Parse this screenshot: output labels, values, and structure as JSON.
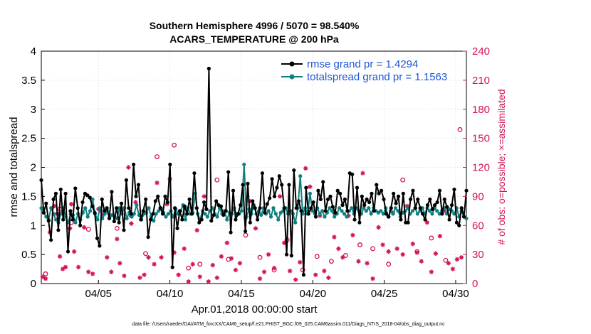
{
  "chart_data": {
    "type": "line",
    "title_line1": "Southern Hemisphere 4996 / 5070 = 98.540%",
    "title_line2": "ACARS_TEMPERATURE @ 200 hPa",
    "xlabel": "Apr.01,2018 00:00:00 start",
    "ylabel": "rmse and totalspread",
    "y2label": "# of obs: o=possible; ×=assimilated",
    "footer": "data file: /Users/raeder/DAI/ATM_forcXX/CAM6_setup/f.e21.FHIST_BGC.f09_025.CAM6assim.011/Diags_NTrS_2018-04/obs_diag_output.nc",
    "xlim": [
      1,
      30.75
    ],
    "ylim": [
      0,
      4
    ],
    "y2lim": [
      0,
      240
    ],
    "x_ticks": [
      5,
      10,
      15,
      20,
      25,
      30
    ],
    "x_tick_labels": [
      "04/05",
      "04/10",
      "04/15",
      "04/20",
      "04/25",
      "04/30"
    ],
    "y_ticks": [
      0,
      0.5,
      1,
      1.5,
      2,
      2.5,
      3,
      3.5,
      4
    ],
    "y_tick_labels": [
      "0",
      "0.5",
      "1",
      "1.5",
      "2",
      "2.5",
      "3",
      "3.5",
      "4"
    ],
    "y2_ticks": [
      0,
      30,
      60,
      90,
      120,
      150,
      180,
      210,
      240
    ],
    "y2_tick_labels": [
      "0",
      "30",
      "60",
      "90",
      "120",
      "150",
      "180",
      "210",
      "240"
    ],
    "legend": [
      {
        "name": "rmse grand pr = 1.4294",
        "color": "#000000"
      },
      {
        "name": "totalspread grand pr = 1.1563",
        "color": "#0f8080"
      }
    ],
    "colors": {
      "rmse": "#000000",
      "spread": "#0f8080",
      "obs": "#d4145a",
      "right_axis": "#d4145a"
    },
    "series": [
      {
        "name": "rmse",
        "values": [
          1.78,
          1.22,
          1.38,
          1.08,
          0.75,
          1.45,
          1.55,
          0.92,
          1.62,
          1.1,
          1.55,
          0.55,
          1.25,
          1.1,
          1.64,
          1.3,
          1.0,
          1.4,
          1.55,
          1.52,
          1.48,
          1.33,
          1.22,
          0.78,
          0.65,
          1.45,
          1.25,
          1.3,
          1.12,
          1.58,
          1.07,
          1.3,
          1.05,
          1.38,
          0.92,
          1.78,
          1.3,
          1.2,
          2.05,
          1.5,
          1.7,
          1.1,
          1.25,
          1.45,
          0.8,
          1.1,
          1.2,
          1.42,
          1.5,
          1.3,
          1.2,
          1.5,
          1.4,
          2.05,
          0.28,
          1.3,
          0.95,
          1.25,
          1.1,
          1.33,
          1.2,
          1.45,
          1.2,
          1.9,
          1.3,
          1.05,
          1.1,
          1.4,
          1.28,
          3.7,
          1.08,
          1.18,
          1.42,
          1.35,
          1.33,
          1.18,
          1.25,
          1.92,
          0.88,
          1.6,
          1.1,
          1.2,
          1.35,
          1.7,
          0.9,
          1.72,
          1.05,
          1.42,
          1.3,
          1.1,
          1.3,
          1.9,
          1.22,
          1.37,
          1.47,
          1.8,
          1.5,
          1.65,
          1.85,
          1.7,
          1.3,
          0.5,
          1.7,
          0.48,
          1.95,
          1.3,
          1.42,
          1.25,
          0.15,
          1.65,
          1.2,
          1.3,
          1.4,
          1.15,
          1.6,
          1.45,
          1.75,
          1.25,
          1.45,
          1.5,
          1.32,
          1.22,
          1.6,
          1.55,
          1.35,
          1.45,
          1.25,
          1.9,
          1.88,
          1.1,
          1.65,
          1.05,
          1.5,
          1.35,
          1.45,
          1.4,
          1.55,
          1.25,
          1.7,
          1.55,
          1.6,
          1.45,
          1.2,
          1.15,
          1.3,
          1.55,
          1.38,
          1.5,
          1.1,
          1.55,
          1.05,
          1.05,
          1.45,
          1.6,
          1.3,
          1.45,
          1.3,
          1.2,
          1.1,
          1.35,
          1.45,
          1.28,
          1.35,
          1.4,
          1.6,
          1.2,
          1.45,
          1.32,
          1.1,
          1.35,
          1.62,
          1.05,
          1.0,
          1.3,
          1.15,
          1.6
        ]
      },
      {
        "name": "totalspread",
        "values": [
          1.3,
          1.22,
          1.15,
          1.1,
          1.3,
          1.2,
          1.1,
          1.05,
          1.2,
          1.3,
          1.15,
          1.05,
          1.2,
          1.18,
          1.05,
          1.2,
          1.1,
          1.22,
          1.3,
          1.15,
          1.25,
          1.45,
          1.2,
          1.1,
          1.3,
          1.12,
          1.2,
          1.25,
          1.15,
          1.18,
          1.15,
          1.12,
          1.3,
          1.2,
          1.3,
          1.12,
          1.22,
          1.15,
          1.2,
          1.35,
          1.18,
          1.1,
          1.2,
          1.22,
          1.3,
          1.15,
          1.08,
          1.2,
          1.25,
          1.3,
          1.22,
          1.15,
          1.2,
          1.25,
          1.15,
          1.28,
          1.2,
          1.25,
          1.35,
          1.1,
          1.3,
          1.2,
          1.22,
          1.55,
          1.2,
          1.1,
          1.25,
          1.2,
          1.15,
          1.25,
          1.3,
          1.2,
          1.15,
          1.3,
          1.2,
          1.25,
          1.1,
          1.22,
          1.2,
          1.3,
          1.18,
          1.2,
          1.25,
          2.05,
          1.15,
          1.28,
          1.2,
          1.35,
          1.2,
          1.25,
          1.18,
          1.3,
          1.2,
          1.25,
          1.15,
          1.3,
          1.2,
          1.1,
          1.22,
          1.25,
          1.3,
          1.2,
          1.25,
          1.2,
          1.05,
          1.3,
          1.85,
          1.2,
          1.3,
          1.2,
          1.55,
          1.25,
          1.2,
          1.3,
          1.2,
          1.25,
          1.15,
          1.22,
          1.3,
          1.25,
          1.15,
          1.2,
          1.3,
          1.25,
          1.2,
          1.15,
          1.25,
          1.3,
          1.2,
          1.3,
          1.25,
          1.2,
          1.3,
          1.25,
          1.3,
          1.2,
          1.3,
          1.25,
          1.22,
          1.25,
          1.2,
          1.3,
          1.15,
          1.25,
          1.2,
          1.3,
          1.25,
          1.15,
          1.22,
          1.25,
          1.3,
          1.2,
          1.25,
          1.3,
          1.2,
          1.25,
          1.3,
          1.2,
          1.3,
          1.25,
          1.2,
          1.3,
          1.25,
          1.2,
          1.25,
          1.3,
          1.2,
          1.28,
          1.25,
          1.2,
          1.3,
          1.15,
          1.25,
          1.15,
          1.12
        ]
      },
      {
        "name": "obs_possible",
        "x": [
          1.3,
          2.3,
          3.1,
          4.3,
          6.3,
          7.3,
          8.3,
          9.1,
          10.3,
          11.3,
          12.1,
          13.3,
          14.1,
          15.3,
          16.3,
          17.3,
          18.2,
          19.3,
          20.3,
          21.3,
          22.3,
          23.3,
          24.2,
          25.3,
          26.3,
          27.3,
          28.3,
          29.3,
          30.3
        ],
        "values": [
          10,
          77,
          63,
          56,
          57,
          70,
          31,
          131,
          143,
          16,
          20,
          107,
          25,
          50,
          27,
          14,
          45,
          14,
          28,
          23,
          29,
          40,
          36,
          20,
          107,
          33,
          47,
          24,
          159
        ]
      },
      {
        "name": "obs_assimilated",
        "x": [
          1.1,
          1.3,
          1.6,
          1.9,
          2.1,
          2.3,
          2.5,
          2.7,
          3.0,
          3.1,
          3.3,
          3.6,
          4.0,
          4.3,
          4.6,
          5.0,
          5.3,
          5.6,
          5.9,
          6.3,
          6.5,
          6.8,
          7.1,
          7.3,
          7.6,
          7.9,
          8.2,
          8.5,
          8.9,
          9.1,
          9.4,
          9.8,
          10.0,
          10.3,
          10.6,
          11.0,
          11.3,
          11.6,
          11.9,
          12.1,
          12.4,
          12.7,
          13.0,
          13.3,
          13.6,
          14.0,
          14.3,
          14.6,
          14.9,
          15.3,
          15.6,
          16.0,
          16.3,
          16.6,
          16.9,
          17.3,
          17.7,
          18.0,
          18.4,
          18.8,
          19.1,
          19.5,
          19.8,
          20.2,
          20.5,
          20.8,
          21.1,
          21.5,
          21.8,
          22.1,
          22.5,
          22.8,
          23.2,
          23.5,
          23.8,
          24.2,
          24.6,
          24.9,
          25.3,
          25.6,
          25.9,
          26.3,
          26.6,
          27.0,
          27.3,
          27.6,
          28.0,
          28.3,
          28.6,
          28.9,
          29.2,
          29.5,
          29.8,
          30.1,
          30.4
        ],
        "values": [
          7,
          5,
          53,
          80,
          72,
          28,
          15,
          17,
          57,
          82,
          33,
          17,
          58,
          12,
          10,
          77,
          71,
          27,
          12,
          46,
          21,
          8,
          120,
          62,
          84,
          6,
          9,
          27,
          20,
          104,
          27,
          82,
          108,
          32,
          9,
          36,
          2,
          20,
          55,
          7,
          90,
          2,
          19,
          6,
          28,
          42,
          26,
          14,
          21,
          68,
          85,
          57,
          5,
          12,
          30,
          16,
          90,
          42,
          13,
          4,
          22,
          119,
          100,
          9,
          70,
          13,
          6,
          48,
          36,
          27,
          70,
          50,
          23,
          114,
          21,
          5,
          58,
          40,
          33,
          73,
          36,
          30,
          80,
          41,
          32,
          23,
          63,
          12,
          31,
          49,
          75,
          21,
          15,
          25,
          27
        ]
      }
    ]
  }
}
